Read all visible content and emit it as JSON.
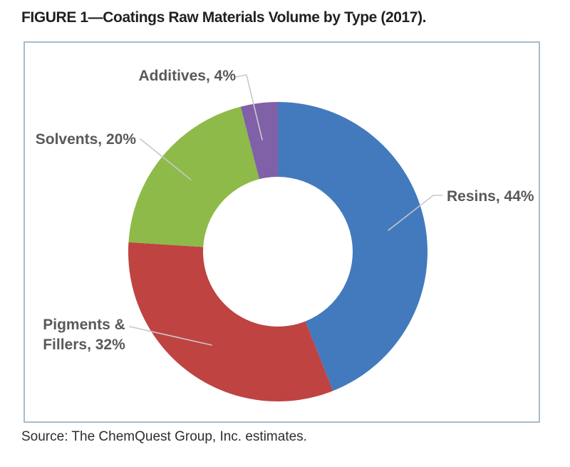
{
  "figure": {
    "title": "FIGURE 1—Coatings Raw Materials Volume by Type (2017).",
    "source": "Source: The ChemQuest Group, Inc. estimates."
  },
  "chart_data": {
    "type": "pie",
    "variant": "donut",
    "title": "Coatings Raw Materials Volume by Type (2017)",
    "units": "%",
    "start_angle_deg": 0,
    "direction": "clockwise",
    "inner_radius_ratio": 0.5,
    "total": 100,
    "slices": [
      {
        "label": "Resins",
        "value": 44,
        "color": "#427ABD",
        "display_lines": [
          "Resins, 44%"
        ]
      },
      {
        "label": "Pigments & Fillers",
        "value": 32,
        "color": "#BF4341",
        "display_lines": [
          "Pigments &",
          "Fillers, 32%"
        ]
      },
      {
        "label": "Solvents",
        "value": 20,
        "color": "#8EBA49",
        "display_lines": [
          "Solvents, 20%"
        ]
      },
      {
        "label": "Additives",
        "value": 4,
        "color": "#8061A8",
        "display_lines": [
          "Additives, 4%"
        ]
      }
    ],
    "label_color": "#595959",
    "leader_line_color": "#C8C8CC",
    "frame_border_color": "#A6BCCB"
  }
}
